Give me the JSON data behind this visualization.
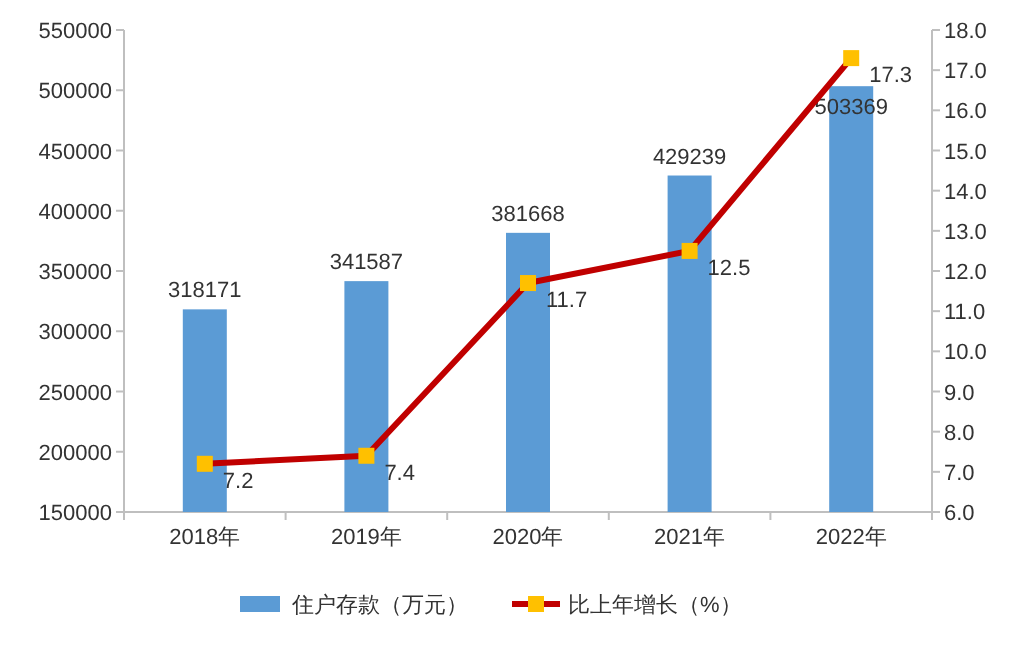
{
  "chart_data": {
    "type": "bar",
    "categories": [
      "2018年",
      "2019年",
      "2020年",
      "2021年",
      "2022年"
    ],
    "series": [
      {
        "name": "住户存款（万元）",
        "color": "#5b9bd5",
        "values": [
          318171,
          341587,
          381668,
          429239,
          503369
        ]
      },
      {
        "name": "比上年增长（%）",
        "type": "line",
        "axis": "y2",
        "color": "#c00000",
        "marker": "square",
        "values": [
          7.2,
          7.4,
          11.7,
          12.5,
          17.3
        ]
      }
    ],
    "ylim": [
      150000,
      550000
    ],
    "yticks": [
      150000,
      200000,
      250000,
      300000,
      350000,
      400000,
      450000,
      500000,
      550000
    ],
    "y2lim": [
      6,
      18
    ],
    "y2ticks": [
      {
        "value": 6,
        "label": "6.0"
      },
      {
        "value": 7,
        "label": "7.0"
      },
      {
        "value": 8,
        "label": "8.0"
      },
      {
        "value": 9,
        "label": "9.0"
      },
      {
        "value": 10,
        "label": "10.0"
      },
      {
        "value": 11,
        "label": "11.0"
      },
      {
        "value": 12,
        "label": "12.0"
      },
      {
        "value": 13,
        "label": "13.0"
      },
      {
        "value": 14,
        "label": "14.0"
      },
      {
        "value": 15,
        "label": "15.0"
      },
      {
        "value": 16,
        "label": "16.0"
      },
      {
        "value": 17,
        "label": "17.0"
      },
      {
        "value": 18,
        "label": "18.0"
      }
    ],
    "data_labels": true,
    "legend": "bottom",
    "grid": false
  }
}
